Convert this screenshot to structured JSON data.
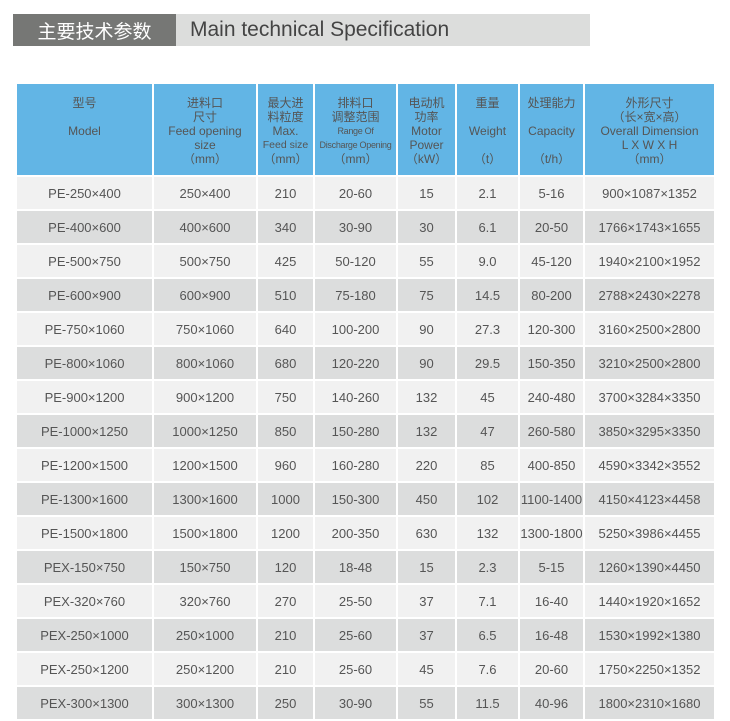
{
  "title": {
    "cn": "主要技术参数",
    "en": "Main technical Specification"
  },
  "colors": {
    "header_bg": "#62b5e5",
    "row_light": "#f1f1f1",
    "row_dark": "#dcdddd",
    "title_dark": "#767775",
    "title_light": "#dcdddc"
  },
  "headers": [
    {
      "lines": [
        "型号",
        "",
        "Model"
      ]
    },
    {
      "lines": [
        "进料口",
        "尺寸",
        "Feed opening",
        "size",
        "（mm）"
      ]
    },
    {
      "lines": [
        "最大进",
        "料粒度",
        "Max.",
        "Feed size",
        "（mm）"
      ]
    },
    {
      "lines": [
        "排料口",
        "调整范围",
        "Range Of",
        "Discharge Opening",
        "（mm）"
      ]
    },
    {
      "lines": [
        "电动机",
        "功率",
        "Motor",
        "Power",
        "（kW）"
      ]
    },
    {
      "lines": [
        "重量",
        "",
        "Weight",
        "",
        "（t）"
      ]
    },
    {
      "lines": [
        "处理能力",
        "",
        "Capacity",
        "",
        "（t/h）"
      ]
    },
    {
      "lines": [
        "外形尺寸",
        "（长×宽×高）",
        "Overall Dimension",
        "L X W X H",
        "（mm）"
      ]
    }
  ],
  "rows": [
    [
      "PE-250×400",
      "250×400",
      "210",
      "20-60",
      "15",
      "2.1",
      "5-16",
      "900×1087×1352"
    ],
    [
      "PE-400×600",
      "400×600",
      "340",
      "30-90",
      "30",
      "6.1",
      "20-50",
      "1766×1743×1655"
    ],
    [
      "PE-500×750",
      "500×750",
      "425",
      "50-120",
      "55",
      "9.0",
      "45-120",
      "1940×2100×1952"
    ],
    [
      "PE-600×900",
      "600×900",
      "510",
      "75-180",
      "75",
      "14.5",
      "80-200",
      "2788×2430×2278"
    ],
    [
      "PE-750×1060",
      "750×1060",
      "640",
      "100-200",
      "90",
      "27.3",
      "120-300",
      "3160×2500×2800"
    ],
    [
      "PE-800×1060",
      "800×1060",
      "680",
      "120-220",
      "90",
      "29.5",
      "150-350",
      "3210×2500×2800"
    ],
    [
      "PE-900×1200",
      "900×1200",
      "750",
      "140-260",
      "132",
      "45",
      "240-480",
      "3700×3284×3350"
    ],
    [
      "PE-1000×1250",
      "1000×1250",
      "850",
      "150-280",
      "132",
      "47",
      "260-580",
      "3850×3295×3350"
    ],
    [
      "PE-1200×1500",
      "1200×1500",
      "960",
      "160-280",
      "220",
      "85",
      "400-850",
      "4590×3342×3552"
    ],
    [
      "PE-1300×1600",
      "1300×1600",
      "1000",
      "150-300",
      "450",
      "102",
      "1100-1400",
      "4150×4123×4458"
    ],
    [
      "PE-1500×1800",
      "1500×1800",
      "1200",
      "200-350",
      "630",
      "132",
      "1300-1800",
      "5250×3986×4455"
    ],
    [
      "PEX-150×750",
      "150×750",
      "120",
      "18-48",
      "15",
      "2.3",
      "5-15",
      "1260×1390×4450"
    ],
    [
      "PEX-320×760",
      "320×760",
      "270",
      "25-50",
      "37",
      "7.1",
      "16-40",
      "1440×1920×1652"
    ],
    [
      "PEX-250×1000",
      "250×1000",
      "210",
      "25-60",
      "37",
      "6.5",
      "16-48",
      "1530×1992×1380"
    ],
    [
      "PEX-250×1200",
      "250×1200",
      "210",
      "25-60",
      "45",
      "7.6",
      "20-60",
      "1750×2250×1352"
    ],
    [
      "PEX-300×1300",
      "300×1300",
      "250",
      "30-90",
      "55",
      "11.5",
      "40-96",
      "1800×2310×1680"
    ]
  ]
}
